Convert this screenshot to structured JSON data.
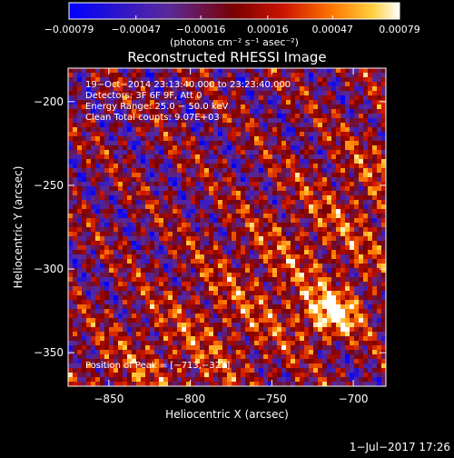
{
  "chart_data": {
    "type": "heatmap",
    "title": "Reconstructed RHESSI Image",
    "xlabel": "Heliocentric X (arcsec)",
    "ylabel": "Heliocentric Y (arcsec)",
    "xlim": [
      -875,
      -680
    ],
    "ylim": [
      -370,
      -180
    ],
    "xticks": [
      -850,
      -800,
      -750,
      -700
    ],
    "xtick_labels": [
      "−850",
      "−800",
      "−750",
      "−700"
    ],
    "yticks": [
      -200,
      -250,
      -300,
      -350
    ],
    "ytick_labels": [
      "−200",
      "−250",
      "−300",
      "−350"
    ],
    "colorbar": {
      "range": [
        -0.00079,
        0.00079
      ],
      "ticks": [
        -0.00079,
        -0.00047,
        -0.00016,
        0.00016,
        0.00047,
        0.00079
      ],
      "tick_labels": [
        "−0.00079",
        "−0.00047",
        "−0.00016",
        "0.00016",
        "0.00047",
        "0.00079"
      ],
      "unit_label": "(photons cm⁻² s⁻¹ asec⁻²)"
    },
    "annotations": [
      "19−Oct−2014 23:13:40.000 to 23:23:40.000",
      "Detectors: 3F 6F 9F, Att 0",
      "Energy Range: 25.0 − 50.0 keV",
      "Clean    Total counts: 9.07E+03"
    ],
    "peak_label": "Position of Peak = [−713,−327]",
    "peak_position": [
      -713,
      -327
    ]
  },
  "footer": {
    "date": "1−Jul−2017 17:26"
  }
}
